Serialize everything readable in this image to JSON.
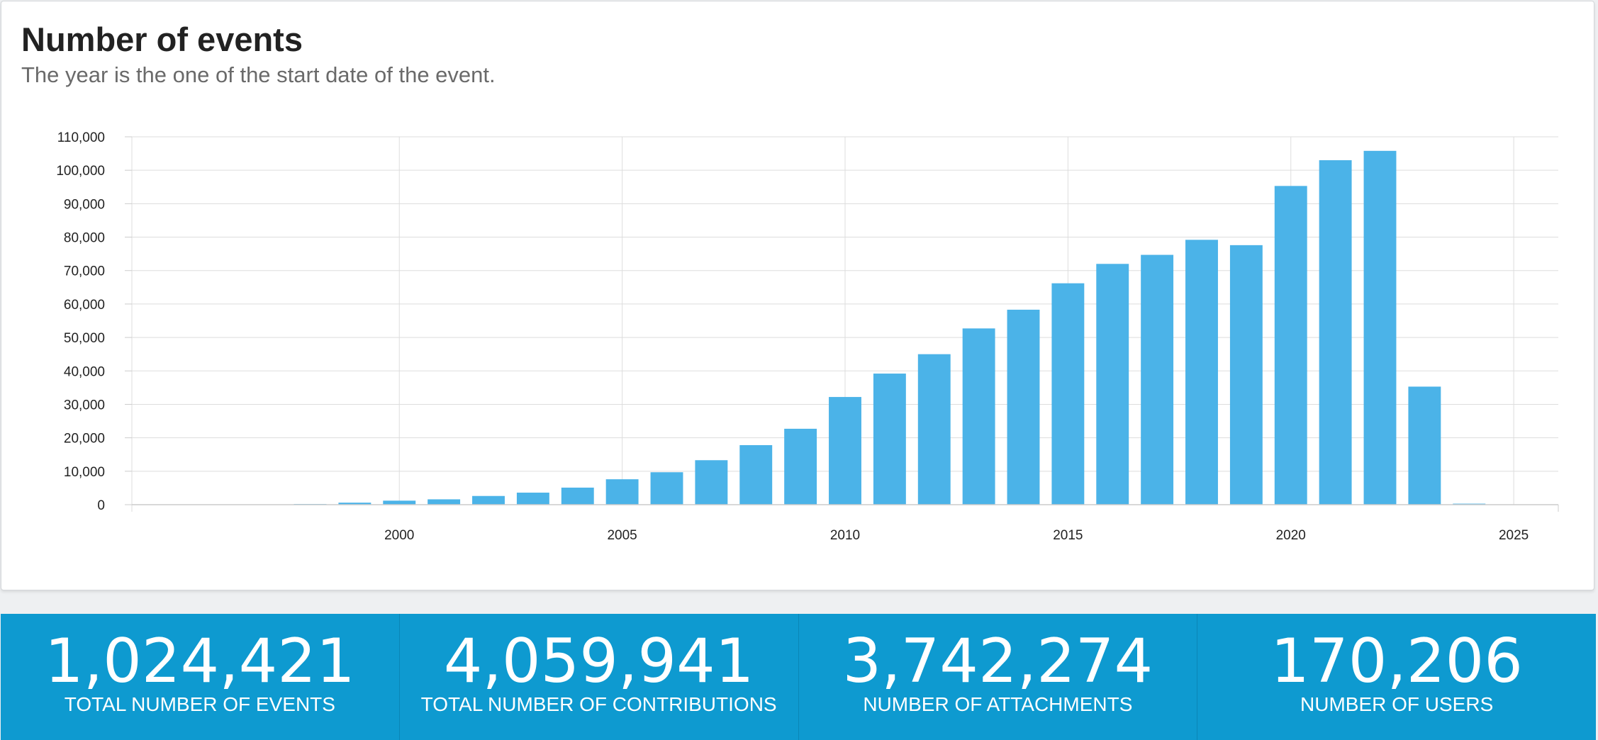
{
  "card": {
    "title": "Number of events",
    "subtitle": "The year is the one of the start date of the event."
  },
  "chart_data": {
    "type": "bar",
    "title": "Number of events",
    "subtitle": "The year is the one of the start date of the event.",
    "xlabel": "",
    "ylabel": "",
    "x": [
      1998,
      1999,
      2000,
      2001,
      2002,
      2003,
      2004,
      2005,
      2006,
      2007,
      2008,
      2009,
      2010,
      2011,
      2012,
      2013,
      2014,
      2015,
      2016,
      2017,
      2018,
      2019,
      2020,
      2021,
      2022,
      2023,
      2024
    ],
    "values": [
      200,
      600,
      1200,
      1600,
      2600,
      3600,
      5100,
      7600,
      9700,
      13300,
      17800,
      22700,
      32200,
      39200,
      45000,
      52700,
      58300,
      66200,
      72000,
      74700,
      79200,
      77600,
      95300,
      103000,
      105800,
      35300,
      300
    ],
    "xlim": [
      1994,
      2026
    ],
    "ylim": [
      0,
      110000
    ],
    "xticks": [
      2000,
      2005,
      2010,
      2015,
      2020,
      2025
    ],
    "yticks": [
      0,
      10000,
      20000,
      30000,
      40000,
      50000,
      60000,
      70000,
      80000,
      90000,
      100000,
      110000
    ],
    "grid": true,
    "legend": "none",
    "bar_color": "#4bb3e8"
  },
  "stats": [
    {
      "value": "1,024,421",
      "label": "Total number of events"
    },
    {
      "value": "4,059,941",
      "label": "Total number of contributions"
    },
    {
      "value": "3,742,274",
      "label": "Number of attachments"
    },
    {
      "value": "170,206",
      "label": "Number of users"
    }
  ],
  "colors": {
    "stats_background": "#0e9ad0",
    "bar": "#4bb3e8",
    "grid": "#dddddd"
  }
}
